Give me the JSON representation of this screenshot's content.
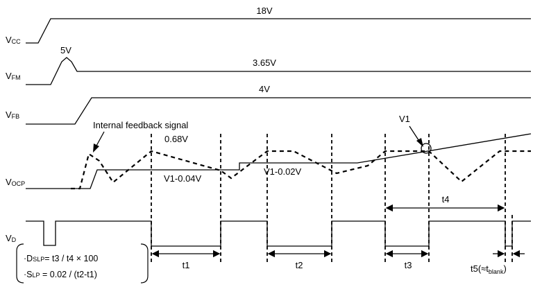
{
  "signals": {
    "vcc": {
      "main": "V",
      "sub": "CC"
    },
    "vfm": {
      "main": "V",
      "sub": "FM"
    },
    "vfb": {
      "main": "V",
      "sub": "FB"
    },
    "vocp": {
      "main": "V",
      "sub": "OCP"
    },
    "vd": {
      "main": "V",
      "sub": "D"
    }
  },
  "levels": {
    "vcc": "18V",
    "vfm_peak": "5V",
    "vfm": "3.65V",
    "vfb": "4V",
    "ocp_peak": "0.68V",
    "v1_minus_004": "V1-0.04V",
    "v1_minus_002": "V1-0.02V",
    "v1": "V1"
  },
  "annotations": {
    "internal_feedback": "Internal feedback signal"
  },
  "times": {
    "t1": "t1",
    "t2": "t2",
    "t3": "t3",
    "t4": "t4",
    "t5_prefix": "t5(≈t",
    "t5_sub": "blank",
    "t5_suffix": ")"
  },
  "formulas": {
    "dslp_bullet": "·",
    "dslp_d": "D",
    "dslp_sub": "SLP",
    "dslp_rest": "= t3 / t4 × 100",
    "slp_bullet": "·",
    "slp_s": "S",
    "slp_sub": "LP",
    "slp_rest": " = 0.02 / (t2-t1)"
  }
}
